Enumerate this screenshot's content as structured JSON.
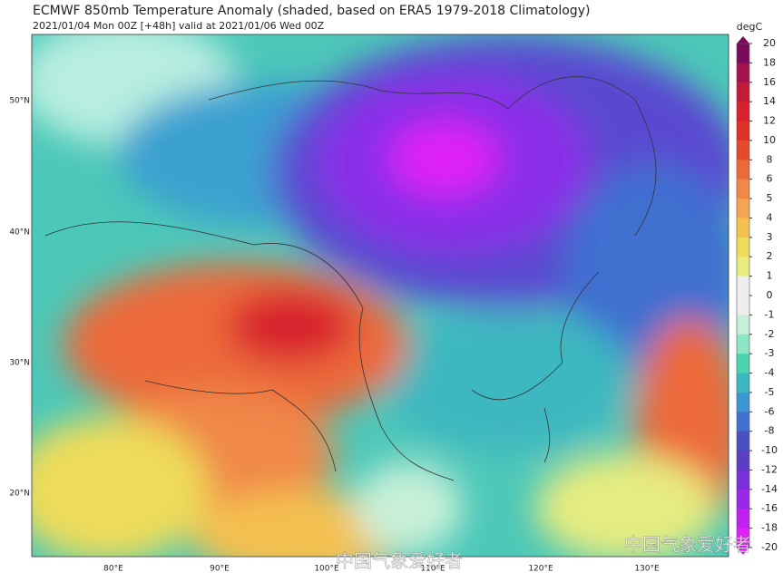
{
  "header": {
    "title": "ECMWF 850mb Temperature Anomaly (shaded, based on ERA5 1979-2018 Climatology)",
    "subtitle": "2021/01/04 Mon 00Z [+48h] valid at 2021/01/06 Wed 00Z"
  },
  "map": {
    "lat_labels": [
      "50°N",
      "40°N",
      "30°N",
      "20°N"
    ],
    "lon_labels": [
      "80°E",
      "90°E",
      "100°E",
      "110°E",
      "120°E",
      "130°E"
    ]
  },
  "colorbar": {
    "label": "degC",
    "levels": [
      20,
      18,
      16,
      14,
      12,
      10,
      8,
      6,
      5,
      4,
      3,
      2,
      1,
      0,
      -1,
      -2,
      -3,
      -4,
      -5,
      -6,
      -8,
      -10,
      -12,
      -14,
      -16,
      -18,
      -20
    ],
    "colors": [
      "#7a0a5c",
      "#a3124a",
      "#c41a3a",
      "#d8202e",
      "#e0302a",
      "#e64a2e",
      "#ec6a3a",
      "#f08848",
      "#f4a452",
      "#f4c050",
      "#eedc5a",
      "#e6ec80",
      "#eeeeee",
      "#eeeeee",
      "#c8f0d8",
      "#8ee6c4",
      "#4cd4b0",
      "#3cb8c0",
      "#3c96d4",
      "#4070d0",
      "#4a50c0",
      "#5a3ec4",
      "#7a30d8",
      "#9a28e8",
      "#c020f0",
      "#e020f8"
    ]
  },
  "watermark": [
    "中国气象爱好者",
    "中国气象爱好者"
  ]
}
